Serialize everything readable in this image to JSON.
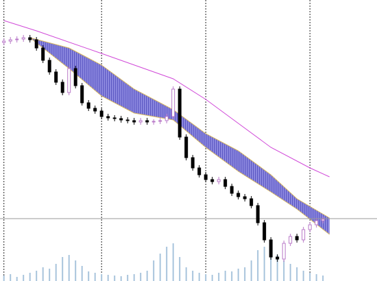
{
  "chart_data": {
    "type": "candlestick",
    "xlim": [
      -0.6,
      57.3
    ],
    "ylim": [
      0,
      410
    ],
    "open": [
      348,
      350,
      352,
      353,
      355,
      352,
      340,
      322,
      305,
      290,
      275,
      310,
      285,
      260,
      252,
      248,
      240,
      238,
      237,
      235,
      234,
      232,
      234,
      232,
      233,
      234,
      240,
      280,
      210,
      180,
      165,
      155,
      148,
      145,
      148,
      138,
      128,
      123,
      120,
      110,
      85,
      60,
      35,
      32,
      55,
      65,
      60,
      75,
      82,
      88
    ],
    "high": [
      354,
      356,
      357,
      359,
      359,
      356,
      344,
      326,
      309,
      294,
      314,
      314,
      289,
      264,
      256,
      252,
      244,
      242,
      241,
      239,
      238,
      238,
      238,
      236,
      238,
      244,
      284,
      284,
      214,
      184,
      169,
      159,
      152,
      152,
      152,
      142,
      132,
      127,
      124,
      114,
      89,
      64,
      39,
      59,
      69,
      69,
      79,
      86,
      92,
      94
    ],
    "low": [
      344,
      346,
      348,
      349,
      348,
      336,
      318,
      301,
      286,
      271,
      271,
      281,
      256,
      248,
      244,
      236,
      234,
      233,
      231,
      230,
      228,
      228,
      228,
      228,
      229,
      230,
      236,
      206,
      176,
      161,
      151,
      144,
      141,
      141,
      134,
      124,
      119,
      116,
      106,
      81,
      56,
      31,
      28,
      28,
      51,
      56,
      56,
      71,
      78,
      84
    ],
    "close": [
      350,
      352,
      353,
      355,
      352,
      340,
      322,
      305,
      290,
      275,
      310,
      285,
      260,
      252,
      248,
      240,
      238,
      237,
      235,
      234,
      232,
      234,
      232,
      233,
      234,
      240,
      280,
      210,
      180,
      165,
      155,
      148,
      145,
      148,
      138,
      128,
      123,
      120,
      110,
      85,
      60,
      35,
      32,
      55,
      65,
      60,
      75,
      82,
      88,
      90
    ],
    "up_color": "#b878c8",
    "down_color": "#000000",
    "ma": {
      "color": "#d048d8",
      "x": [
        0,
        5,
        15,
        26,
        31,
        36,
        41,
        47,
        50
      ],
      "values": [
        380,
        365,
        332,
        295,
        265,
        230,
        195,
        165,
        152
      ]
    },
    "cloud": {
      "color": "#7c78d8",
      "edge_color": "#d8b860",
      "x": [
        4,
        10,
        15,
        20,
        26,
        31,
        36,
        41,
        45,
        50
      ],
      "span_a": [
        355,
        340,
        315,
        280,
        250,
        215,
        190,
        155,
        120,
        92
      ],
      "span_b": [
        355,
        310,
        270,
        245,
        235,
        195,
        160,
        130,
        105,
        68
      ]
    },
    "volume": {
      "color": "#a8c4dc",
      "lim": [
        0,
        100
      ],
      "values": [
        8,
        10,
        6,
        9,
        12,
        15,
        20,
        18,
        25,
        35,
        38,
        30,
        22,
        14,
        12,
        10,
        9,
        8,
        7,
        9,
        10,
        12,
        15,
        30,
        40,
        50,
        55,
        35,
        20,
        15,
        12,
        10,
        9,
        12,
        15,
        14,
        18,
        20,
        30,
        45,
        50,
        42,
        38,
        30,
        25,
        20,
        15,
        12,
        10,
        8
      ]
    },
    "xgrid": [
      0,
      15,
      31,
      47
    ],
    "price_line": 91
  }
}
